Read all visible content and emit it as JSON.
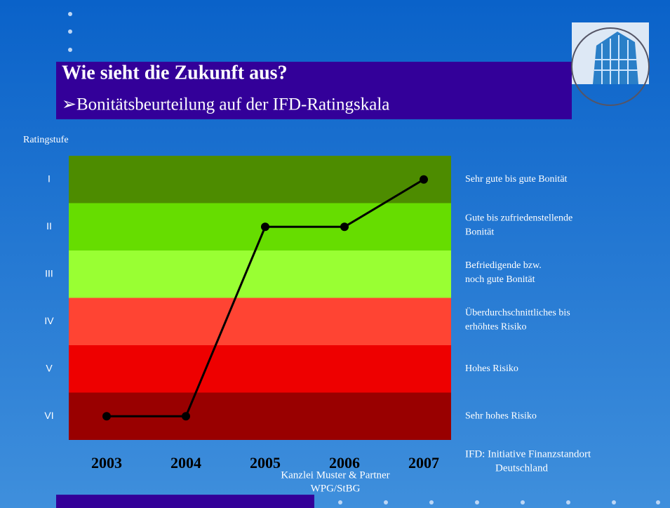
{
  "header": {
    "title": "Wie sieht die Zukunft aus?",
    "subtitle": "➢Bonitätsbeurteilung auf der IFD-Ratingskala"
  },
  "chart_data": {
    "type": "line",
    "ylabel": "Ratingstufe",
    "categories": [
      "2003",
      "2004",
      "2005",
      "2006",
      "2007"
    ],
    "values": [
      6,
      6,
      2,
      2,
      1
    ],
    "color": "#000000",
    "ylim": [
      6.5,
      0.5
    ],
    "yticks": [
      {
        "value": 1,
        "label": "I"
      },
      {
        "value": 2,
        "label": "II"
      },
      {
        "value": 3,
        "label": "III"
      },
      {
        "value": 4,
        "label": "IV"
      },
      {
        "value": 5,
        "label": "V"
      },
      {
        "value": 6,
        "label": "VI"
      }
    ],
    "bands": [
      {
        "label": [
          "Sehr gute bis gute Bonität"
        ],
        "color": "#4d8c00"
      },
      {
        "label": [
          "Gute bis zufriedenstellende",
          "Bonität"
        ],
        "color": "#66dd00"
      },
      {
        "label": [
          "Befriedigende bzw.",
          "noch gute Bonität"
        ],
        "color": "#99ff33"
      },
      {
        "label": [
          "Überdurchschnittliches bis",
          "erhöhtes Risiko"
        ],
        "color": "#ff4433"
      },
      {
        "label": [
          "Hohes Risiko"
        ],
        "color": "#ee0000"
      },
      {
        "label": [
          "Sehr hohes Risiko"
        ],
        "color": "#990000"
      }
    ],
    "note": [
      "IFD: Initiative Finanzstandort",
      "Deutschland"
    ]
  },
  "footer": [
    "Kanzlei Muster & Partner",
    "WPG/StBG"
  ]
}
